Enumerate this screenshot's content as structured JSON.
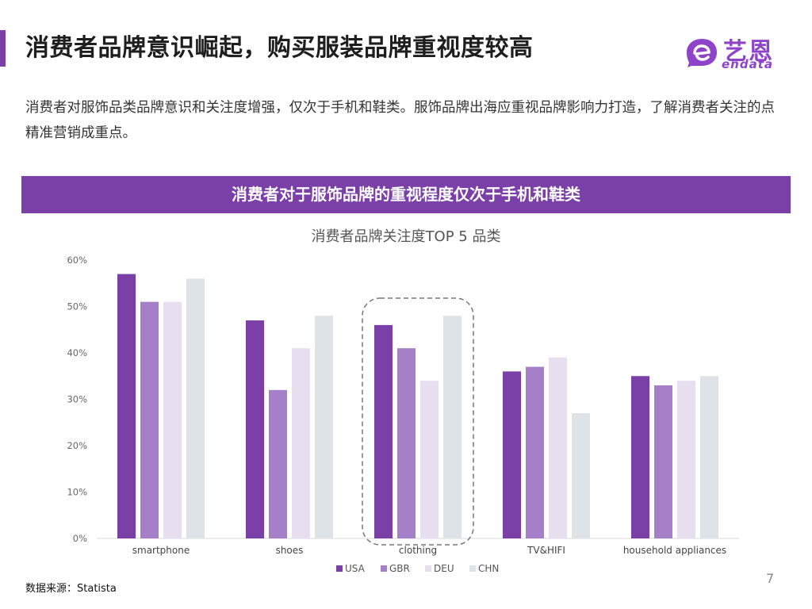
{
  "header": {
    "title": "消费者品牌意识崛起，购买服装品牌重视度较高",
    "accent_color": "#7b3fa8"
  },
  "logo": {
    "name_cn": "艺恩",
    "name_en": "endata",
    "color": "#8e44c8"
  },
  "intro": "消费者对服饰品类品牌意识和关注度增强，仅次于手机和鞋类。服饰品牌出海应重视品牌影响力打造，了解消费者关注的点精准营销成重点。",
  "banner": {
    "text": "消费者对于服饰品牌的重视程度仅次于手机和鞋类",
    "color": "#7b3fa8"
  },
  "chart_data": {
    "type": "bar",
    "title": "消费者品牌关注度TOP 5 品类",
    "xlabel": "",
    "ylabel": "",
    "categories": [
      "smartphone",
      "shoes",
      "clothing",
      "TV&HIFI",
      "household appliances"
    ],
    "series": [
      {
        "name": "USA",
        "values": [
          57,
          47,
          46,
          36,
          35
        ],
        "color": "#7b3fa8"
      },
      {
        "name": "GBR",
        "values": [
          51,
          32,
          41,
          37,
          33
        ],
        "color": "#a57fc8"
      },
      {
        "name": "DEU",
        "values": [
          51,
          41,
          34,
          39,
          34
        ],
        "color": "#e7dff0"
      },
      {
        "name": "CHN",
        "values": [
          56,
          48,
          48,
          27,
          35
        ],
        "color": "#dde3e6"
      }
    ],
    "ylim": [
      0,
      60
    ],
    "yticks": [
      0,
      10,
      20,
      30,
      40,
      50,
      60
    ],
    "ytick_labels": [
      "0%",
      "10%",
      "20%",
      "30%",
      "40%",
      "50%",
      "60%"
    ],
    "grid": false,
    "legend_position": "bottom",
    "highlighted_category": "clothing"
  },
  "footer": {
    "source": "数据来源：Statista",
    "page_number": "7"
  }
}
